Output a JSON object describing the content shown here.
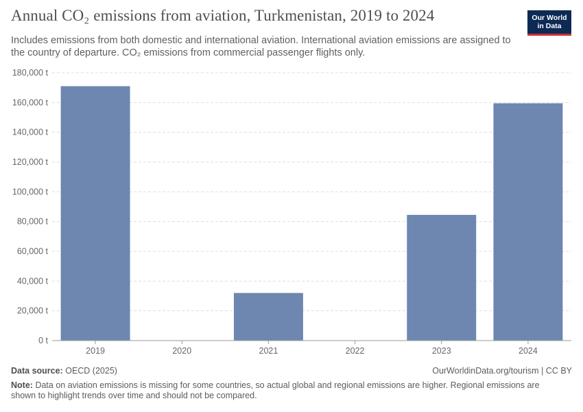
{
  "header": {
    "title": "Annual CO₂ emissions from aviation, Turkmenistan, 2019 to 2024",
    "subtitle": "Includes emissions from both domestic and international aviation. International aviation emissions are assigned to the country of departure. CO₂ emissions from commercial passenger flights only."
  },
  "logo": {
    "line1": "Our World",
    "line2": "in Data"
  },
  "colors": {
    "bar": "#6d87b0",
    "grid": "#dddddd",
    "axis": "#999999"
  },
  "chart_data": {
    "type": "bar",
    "title": "Annual CO₂ emissions from aviation, Turkmenistan, 2019 to 2024",
    "xlabel": "",
    "ylabel": "",
    "unit": "t",
    "categories": [
      "2019",
      "2020",
      "2021",
      "2022",
      "2023",
      "2024"
    ],
    "values": [
      171000,
      null,
      32000,
      null,
      84500,
      159500
    ],
    "ylim": [
      0,
      180000
    ],
    "yticks": [
      0,
      20000,
      40000,
      60000,
      80000,
      100000,
      120000,
      140000,
      160000,
      180000
    ],
    "ytick_labels": [
      "0 t",
      "20,000 t",
      "40,000 t",
      "60,000 t",
      "80,000 t",
      "100,000 t",
      "120,000 t",
      "140,000 t",
      "160,000 t",
      "180,000 t"
    ],
    "grid": true
  },
  "footer": {
    "source_label": "Data source:",
    "source_value": "OECD (2025)",
    "link": "OurWorldinData.org/tourism | CC BY",
    "note_label": "Note:",
    "note_text": "Data on aviation emissions is missing for some countries, so actual global and regional emissions are higher. Regional emissions are shown to highlight trends over time and should not be compared."
  }
}
